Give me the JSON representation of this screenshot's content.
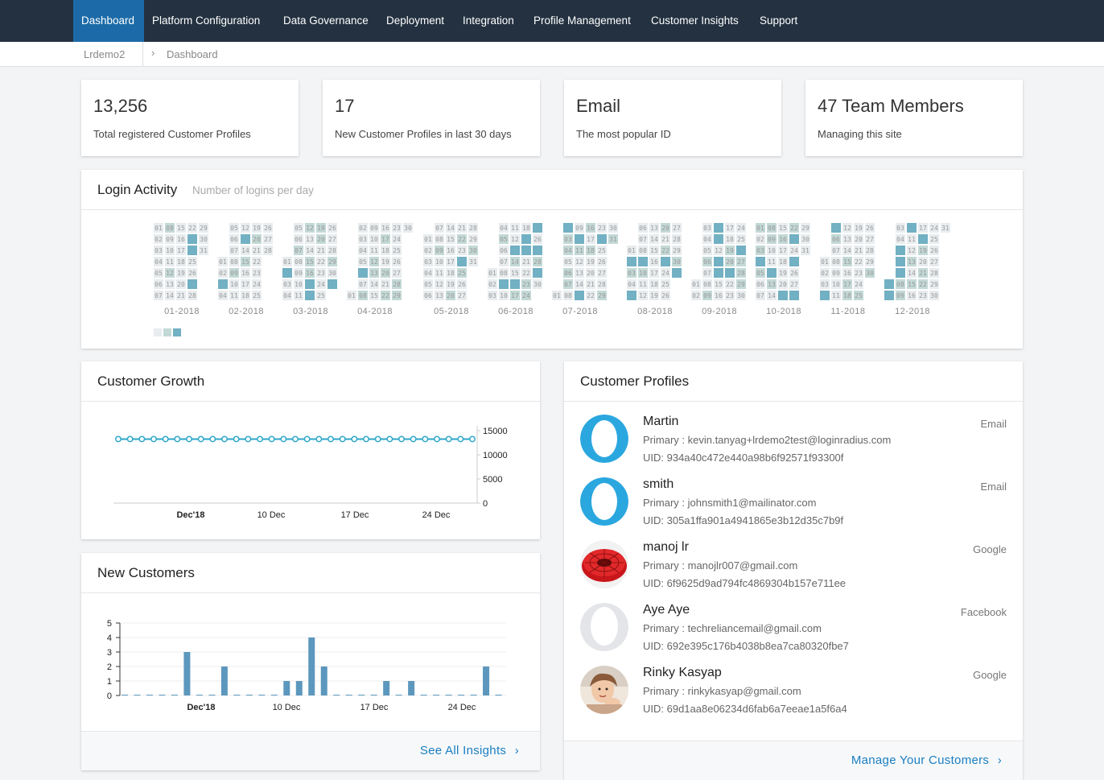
{
  "nav": {
    "items": [
      "Dashboard",
      "Platform Configuration",
      "Data Governance",
      "Deployment",
      "Integration",
      "Profile Management",
      "Customer Insights",
      "Support"
    ],
    "active": "Dashboard"
  },
  "breadcrumb": {
    "site": "Lrdemo2",
    "page": "Dashboard"
  },
  "stats": [
    {
      "value": "13,256",
      "label": "Total registered Customer Profiles"
    },
    {
      "value": "17",
      "label": "New Customer Profiles in last 30 days"
    },
    {
      "value": "Email",
      "label": "The most popular ID"
    },
    {
      "value": "47 Team Members",
      "label": "Managing this site"
    }
  ],
  "login_activity": {
    "title": "Login Activity",
    "subtitle": "Number of logins per day",
    "months": [
      "01-2018",
      "02-2018",
      "03-2018",
      "04-2018",
      "05-2018",
      "06-2018",
      "07-2018",
      "08-2018",
      "09-2018",
      "10-2018",
      "11-2018",
      "12-2018"
    ],
    "legend_colors": [
      "#e8ecee",
      "#c3d9d6",
      "#72b0c3"
    ]
  },
  "customer_growth": {
    "title": "Customer Growth",
    "chart_data": {
      "type": "line",
      "y_ticks": [
        "15000",
        "10000",
        "5000",
        "0"
      ],
      "x_ticks": [
        "Dec'18",
        "10 Dec",
        "17 Dec",
        "24 Dec"
      ],
      "ylim": [
        0,
        15000
      ],
      "values": [
        13256,
        13256,
        13256,
        13256,
        13256,
        13256,
        13256,
        13256,
        13256,
        13256,
        13256,
        13256,
        13256,
        13256,
        13256,
        13256,
        13256,
        13256,
        13256,
        13256,
        13256,
        13256,
        13256,
        13256,
        13256,
        13256,
        13256,
        13256,
        13256,
        13256,
        13256
      ],
      "color": "#2ea7c9"
    }
  },
  "new_customers": {
    "title": "New Customers",
    "chart_data": {
      "type": "bar",
      "y_ticks": [
        "5",
        "4",
        "3",
        "2",
        "1",
        "0"
      ],
      "x_ticks": [
        "Dec'18",
        "10 Dec",
        "17 Dec",
        "24 Dec"
      ],
      "ylim": [
        0,
        5
      ],
      "values": [
        0,
        0,
        0,
        0,
        0,
        3,
        0,
        0,
        2,
        0,
        0,
        0,
        0,
        1,
        1,
        4,
        2,
        0,
        0,
        0,
        0,
        1,
        0,
        1,
        0,
        0,
        0,
        0,
        0,
        2,
        0
      ],
      "color": "#5c97bd"
    },
    "footer_link": "See All Insights"
  },
  "customer_profiles": {
    "title": "Customer Profiles",
    "profiles": [
      {
        "name": "Martin",
        "primary": "Primary : kevin.tanyag+lrdemo2test@loginradius.com",
        "uid": "UID: 934a40c472e440a98b6f92571f93300f",
        "provider": "Email",
        "avatar": "default-blue"
      },
      {
        "name": "smith",
        "primary": "Primary : johnsmith1@mailinator.com",
        "uid": "UID: 305a1ffa901a4941865e3b12d35c7b9f",
        "provider": "Email",
        "avatar": "default-blue"
      },
      {
        "name": "manoj lr",
        "primary": "Primary : manojlr007@gmail.com",
        "uid": "UID: 6f9625d9ad794fc4869304b157e711ee",
        "provider": "Google",
        "avatar": "red-torus"
      },
      {
        "name": "Aye Aye",
        "primary": "Primary : techreliancemail@gmail.com",
        "uid": "UID: 692e395c176b4038b8ea7ca80320fbe7",
        "provider": "Facebook",
        "avatar": "default-grey"
      },
      {
        "name": "Rinky Kasyap",
        "primary": "Primary : rinkykasyap@gmail.com",
        "uid": "UID: 69d1aa8e06234d6fab6a7eeae1a5f6a4",
        "provider": "Google",
        "avatar": "child-photo"
      }
    ],
    "footer_link": "Manage Your Customers"
  }
}
